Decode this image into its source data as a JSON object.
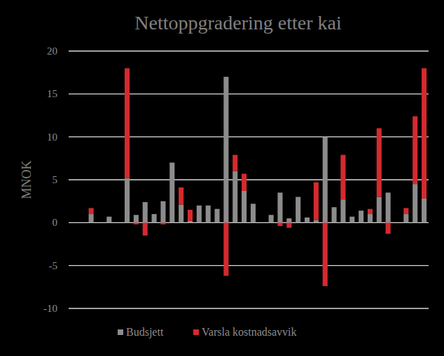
{
  "chart_data": {
    "type": "bar",
    "title": "Nettoppgradering etter kai",
    "y_label": "MNOK",
    "stacked": true,
    "grid": true,
    "legend": "bottom",
    "tick_labels": "y",
    "categories": [
      null,
      null,
      null,
      null,
      null,
      null,
      null,
      null,
      null,
      null,
      null,
      null,
      null,
      null,
      null,
      null,
      null,
      null,
      null,
      null,
      null,
      null,
      null,
      null,
      null,
      null,
      null,
      null,
      null,
      null,
      null,
      null,
      null,
      null,
      null,
      null,
      null,
      null,
      null,
      null
    ],
    "series": [
      {
        "name": "Budsjett",
        "color": "#8c8c8c",
        "values": [
          null,
          null,
          1.0,
          null,
          0.7,
          null,
          5.2,
          0.9,
          2.4,
          1.0,
          2.5,
          7.0,
          2.1,
          0.2,
          2.0,
          2.0,
          1.6,
          17.0,
          6.0,
          3.7,
          2.2,
          null,
          0.9,
          3.5,
          0.5,
          3.0,
          0.6,
          0.3,
          10.0,
          1.8,
          2.7,
          0.7,
          1.4,
          1.0,
          3.0,
          3.5,
          null,
          1.0,
          4.5,
          2.8
        ]
      },
      {
        "name": "Varsla kostnadsavvik",
        "color": "#d42a2f",
        "values": [
          null,
          null,
          0.7,
          null,
          null,
          null,
          12.8,
          -0.2,
          -1.5,
          null,
          -0.2,
          null,
          2.0,
          1.3,
          null,
          null,
          null,
          -6.2,
          1.9,
          2.0,
          null,
          null,
          null,
          -0.4,
          -0.6,
          null,
          null,
          4.4,
          -7.4,
          null,
          5.2,
          null,
          null,
          0.6,
          8.0,
          -1.3,
          null,
          0.7,
          7.9,
          15.2
        ]
      }
    ],
    "ylim": [
      -10,
      20
    ],
    "yticks": [
      -10,
      -5,
      0,
      5,
      10,
      15,
      20
    ]
  }
}
